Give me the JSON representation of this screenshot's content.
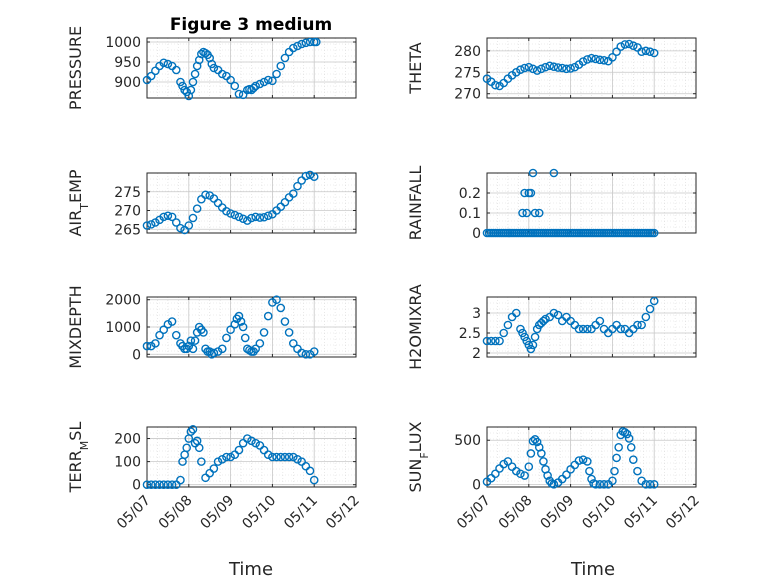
{
  "figure": {
    "title": "Figure 3 medium",
    "marker_color": "#0072BD",
    "x_tick_labels": [
      "05/07",
      "05/08",
      "05/09",
      "05/10",
      "05/11",
      "05/12"
    ],
    "x_label": "Time"
  },
  "chart_data": [
    {
      "type": "scatter",
      "panel": "top-left",
      "ylabel": "PRESSURE",
      "xlim": [
        0,
        5
      ],
      "ylim": [
        860,
        1010
      ],
      "yticks": [
        900,
        950,
        1000
      ],
      "x": [
        0.0,
        0.1,
        0.2,
        0.3,
        0.4,
        0.5,
        0.6,
        0.7,
        0.8,
        0.85,
        0.9,
        0.95,
        1.0,
        1.05,
        1.1,
        1.15,
        1.2,
        1.25,
        1.3,
        1.35,
        1.4,
        1.45,
        1.5,
        1.55,
        1.6,
        1.7,
        1.8,
        1.9,
        2.0,
        2.1,
        2.2,
        2.3,
        2.4,
        2.45,
        2.5,
        2.55,
        2.6,
        2.7,
        2.8,
        2.9,
        3.0,
        3.1,
        3.2,
        3.3,
        3.4,
        3.5,
        3.6,
        3.7,
        3.8,
        3.9,
        4.0,
        4.05
      ],
      "y": [
        905,
        915,
        928,
        940,
        948,
        945,
        940,
        930,
        900,
        890,
        880,
        875,
        865,
        880,
        900,
        920,
        940,
        955,
        970,
        975,
        972,
        968,
        960,
        945,
        935,
        930,
        920,
        915,
        905,
        890,
        870,
        868,
        880,
        882,
        880,
        885,
        890,
        895,
        900,
        905,
        903,
        920,
        940,
        960,
        975,
        985,
        990,
        995,
        998,
        1000,
        1000,
        1000
      ]
    },
    {
      "type": "scatter",
      "panel": "top-right",
      "ylabel": "THETA",
      "xlim": [
        0,
        5
      ],
      "ylim": [
        269,
        283
      ],
      "yticks": [
        270,
        275,
        280
      ],
      "x": [
        0.0,
        0.1,
        0.2,
        0.3,
        0.4,
        0.5,
        0.6,
        0.7,
        0.8,
        0.9,
        1.0,
        1.1,
        1.2,
        1.3,
        1.4,
        1.5,
        1.6,
        1.7,
        1.8,
        1.9,
        2.0,
        2.1,
        2.2,
        2.3,
        2.4,
        2.5,
        2.6,
        2.7,
        2.8,
        2.9,
        3.0,
        3.1,
        3.2,
        3.3,
        3.4,
        3.5,
        3.6,
        3.7,
        3.8,
        3.9,
        4.0
      ],
      "y": [
        273.5,
        272.8,
        272,
        271.8,
        272.5,
        273.5,
        274.3,
        275,
        275.6,
        276,
        276.2,
        275.8,
        275.4,
        275.8,
        276.2,
        276.5,
        276.3,
        276.1,
        276,
        275.8,
        275.9,
        276.2,
        276.8,
        277.5,
        278,
        278.3,
        278.1,
        277.9,
        277.8,
        277.6,
        278.5,
        279.8,
        281,
        281.5,
        281.6,
        281.2,
        280.8,
        279.8,
        280,
        279.8,
        279.5
      ]
    },
    {
      "type": "scatter",
      "panel": "row2-left",
      "ylabel_main": "AIR",
      "ylabel_sub": "T",
      "ylabel_tail": "EMP",
      "ylabel": "AIR_TEMP",
      "xlim": [
        0,
        5
      ],
      "ylim": [
        264,
        280
      ],
      "yticks": [
        265,
        270,
        275
      ],
      "x": [
        0.0,
        0.1,
        0.2,
        0.3,
        0.4,
        0.5,
        0.6,
        0.7,
        0.8,
        0.9,
        1.0,
        1.1,
        1.2,
        1.3,
        1.4,
        1.5,
        1.6,
        1.7,
        1.8,
        1.9,
        2.0,
        2.1,
        2.2,
        2.3,
        2.4,
        2.5,
        2.6,
        2.7,
        2.8,
        2.9,
        3.0,
        3.1,
        3.2,
        3.3,
        3.4,
        3.5,
        3.6,
        3.7,
        3.8,
        3.9,
        4.0
      ],
      "y": [
        266,
        266.3,
        266.8,
        267.5,
        268.3,
        268.6,
        268.3,
        266.8,
        265.3,
        264.8,
        266,
        268,
        270.5,
        273,
        274.2,
        274,
        273.2,
        272,
        270.8,
        269.8,
        269.2,
        268.8,
        268.3,
        267.8,
        267.3,
        268,
        268.3,
        268.1,
        268.2,
        268.6,
        269,
        270,
        271,
        272.2,
        273.5,
        274.5,
        276.5,
        278,
        279.2,
        279.5,
        279
      ]
    },
    {
      "type": "scatter",
      "panel": "row2-right",
      "ylabel": "RAINFALL",
      "xlim": [
        0,
        5
      ],
      "ylim": [
        0,
        0.3
      ],
      "yticks": [
        0,
        0.1,
        0.2
      ],
      "ytick_labels": [
        "0",
        "0.1",
        "0.2"
      ],
      "baseline_from": 0,
      "baseline_to": 4,
      "baseline_step": 0.05,
      "x": [
        0.85,
        0.9,
        0.95,
        1.0,
        1.05,
        1.1,
        1.15,
        1.25,
        1.6
      ],
      "y": [
        0.1,
        0.2,
        0.1,
        0.2,
        0.2,
        0.3,
        0.1,
        0.1,
        0.3
      ]
    },
    {
      "type": "scatter",
      "panel": "row3-left",
      "ylabel": "MIXDEPTH",
      "xlim": [
        0,
        5
      ],
      "ylim": [
        -100,
        2100
      ],
      "yticks": [
        0,
        1000,
        2000
      ],
      "x": [
        0.0,
        0.1,
        0.2,
        0.3,
        0.4,
        0.5,
        0.6,
        0.7,
        0.8,
        0.85,
        0.9,
        0.95,
        1.0,
        1.05,
        1.1,
        1.15,
        1.2,
        1.25,
        1.3,
        1.35,
        1.4,
        1.45,
        1.5,
        1.55,
        1.6,
        1.7,
        1.8,
        1.9,
        2.0,
        2.1,
        2.15,
        2.2,
        2.25,
        2.3,
        2.35,
        2.4,
        2.45,
        2.5,
        2.55,
        2.6,
        2.7,
        2.8,
        2.9,
        3.0,
        3.1,
        3.2,
        3.3,
        3.4,
        3.5,
        3.6,
        3.7,
        3.8,
        3.9,
        4.0
      ],
      "y": [
        300,
        300,
        400,
        700,
        900,
        1100,
        1200,
        700,
        400,
        300,
        200,
        200,
        300,
        500,
        200,
        500,
        800,
        1000,
        900,
        800,
        200,
        100,
        100,
        0,
        50,
        100,
        200,
        600,
        900,
        1100,
        1300,
        1400,
        1200,
        1000,
        600,
        200,
        150,
        100,
        100,
        200,
        400,
        800,
        1400,
        1900,
        2000,
        1700,
        1200,
        800,
        400,
        200,
        50,
        0,
        0,
        100
      ]
    },
    {
      "type": "scatter",
      "panel": "row3-right",
      "ylabel": "H2OMIXRA",
      "xlim": [
        0,
        5
      ],
      "ylim": [
        1.9,
        3.4
      ],
      "yticks": [
        2,
        2.5,
        3
      ],
      "ytick_labels": [
        "2",
        "2.5",
        "3"
      ],
      "x": [
        0.0,
        0.1,
        0.2,
        0.3,
        0.4,
        0.5,
        0.6,
        0.7,
        0.8,
        0.85,
        0.9,
        0.95,
        1.0,
        1.05,
        1.1,
        1.15,
        1.2,
        1.25,
        1.3,
        1.35,
        1.4,
        1.5,
        1.6,
        1.7,
        1.8,
        1.9,
        2.0,
        2.1,
        2.2,
        2.3,
        2.4,
        2.5,
        2.6,
        2.7,
        2.8,
        2.9,
        3.0,
        3.1,
        3.2,
        3.3,
        3.4,
        3.5,
        3.6,
        3.7,
        3.8,
        3.9,
        4.0
      ],
      "y": [
        2.3,
        2.3,
        2.3,
        2.3,
        2.5,
        2.7,
        2.9,
        3.0,
        2.6,
        2.5,
        2.4,
        2.3,
        2.2,
        2.1,
        2.2,
        2.4,
        2.6,
        2.7,
        2.75,
        2.8,
        2.85,
        2.9,
        3.0,
        2.95,
        2.8,
        2.9,
        2.8,
        2.7,
        2.6,
        2.6,
        2.6,
        2.6,
        2.7,
        2.8,
        2.6,
        2.5,
        2.6,
        2.7,
        2.6,
        2.6,
        2.5,
        2.6,
        2.7,
        2.7,
        2.9,
        3.1,
        3.3
      ]
    },
    {
      "type": "scatter",
      "panel": "bottom-left",
      "ylabel_main": "TERR",
      "ylabel_sub": "M",
      "ylabel_tail": "SL",
      "ylabel": "TERR_MSL",
      "xlim": [
        0,
        5
      ],
      "ylim": [
        -10,
        250
      ],
      "yticks": [
        0,
        100,
        200
      ],
      "x": [
        0.0,
        0.1,
        0.2,
        0.3,
        0.4,
        0.5,
        0.6,
        0.7,
        0.8,
        0.85,
        0.9,
        0.95,
        1.0,
        1.05,
        1.1,
        1.15,
        1.2,
        1.25,
        1.3,
        1.4,
        1.5,
        1.6,
        1.7,
        1.8,
        1.9,
        2.0,
        2.1,
        2.2,
        2.3,
        2.4,
        2.5,
        2.6,
        2.7,
        2.8,
        2.9,
        3.0,
        3.1,
        3.2,
        3.3,
        3.4,
        3.5,
        3.6,
        3.7,
        3.8,
        3.9,
        4.0
      ],
      "y": [
        0,
        0,
        0,
        0,
        0,
        0,
        0,
        0,
        20,
        100,
        130,
        160,
        200,
        230,
        240,
        180,
        190,
        160,
        100,
        30,
        50,
        70,
        100,
        110,
        120,
        120,
        130,
        150,
        180,
        200,
        190,
        180,
        170,
        150,
        130,
        120,
        120,
        120,
        120,
        120,
        120,
        110,
        100,
        80,
        60,
        20
      ]
    },
    {
      "type": "scatter",
      "panel": "bottom-right",
      "ylabel_main": "SUN",
      "ylabel_sub": "F",
      "ylabel_tail": "LUX",
      "ylabel": "SUN_FLUX",
      "xlim": [
        0,
        5
      ],
      "ylim": [
        -30,
        650
      ],
      "yticks": [
        0,
        500
      ],
      "x": [
        0.0,
        0.1,
        0.2,
        0.3,
        0.4,
        0.5,
        0.6,
        0.7,
        0.8,
        0.9,
        1.0,
        1.05,
        1.1,
        1.15,
        1.2,
        1.25,
        1.3,
        1.35,
        1.4,
        1.45,
        1.5,
        1.55,
        1.6,
        1.7,
        1.8,
        1.9,
        2.0,
        2.1,
        2.2,
        2.3,
        2.4,
        2.45,
        2.5,
        2.55,
        2.6,
        2.7,
        2.8,
        2.9,
        3.0,
        3.05,
        3.1,
        3.15,
        3.2,
        3.25,
        3.3,
        3.35,
        3.4,
        3.45,
        3.5,
        3.6,
        3.7,
        3.8,
        3.9,
        4.0
      ],
      "y": [
        30,
        70,
        120,
        180,
        230,
        260,
        200,
        150,
        120,
        100,
        200,
        350,
        490,
        510,
        480,
        420,
        350,
        260,
        170,
        100,
        40,
        10,
        0,
        20,
        60,
        110,
        170,
        220,
        270,
        280,
        260,
        150,
        60,
        10,
        0,
        0,
        0,
        0,
        40,
        150,
        300,
        420,
        560,
        600,
        590,
        570,
        520,
        420,
        280,
        150,
        40,
        0,
        0,
        0
      ]
    }
  ]
}
